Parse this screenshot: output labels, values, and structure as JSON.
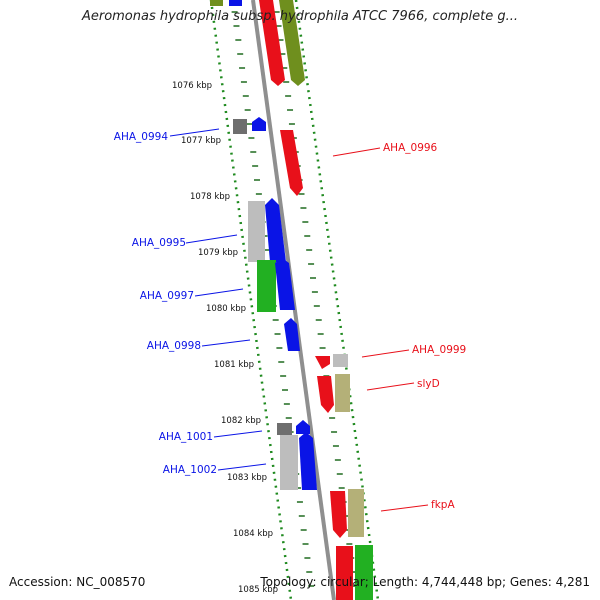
{
  "title": "Aeromonas hydrophila subsp. hydrophila ATCC 7966, complete g...",
  "footer": {
    "accession_label": "Accession:",
    "accession": "NC_008570",
    "stats": "Topology: circular; Length: 4,744,448 bp; Genes: 4,281"
  },
  "scale_labels": [
    "1076 kbp",
    "1077 kbp",
    "1078 kbp",
    "1079 kbp",
    "1080 kbp",
    "1081 kbp",
    "1082 kbp",
    "1083 kbp",
    "1084 kbp",
    "1085 kbp"
  ],
  "colors": {
    "red": "#e8101a",
    "blue": "#0a14e6",
    "green": "#22b022",
    "olive": "#6f8f1e",
    "khaki": "#b4b078",
    "gray": "#bdbdbd",
    "darkgray": "#6e6e6e",
    "dots": "#1f8a1f",
    "backbone": "#8f8f8f"
  },
  "gene_labels": [
    {
      "text": "AHA_0994",
      "side": "left",
      "color": "blue"
    },
    {
      "text": "AHA_0995",
      "side": "left",
      "color": "blue"
    },
    {
      "text": "AHA_0997",
      "side": "left",
      "color": "blue"
    },
    {
      "text": "AHA_0998",
      "side": "left",
      "color": "blue"
    },
    {
      "text": "AHA_1001",
      "side": "left",
      "color": "blue"
    },
    {
      "text": "AHA_1002",
      "side": "left",
      "color": "blue"
    },
    {
      "text": "AHA_0996",
      "side": "right",
      "color": "red"
    },
    {
      "text": "AHA_0999",
      "side": "right",
      "color": "red"
    },
    {
      "text": "slyD",
      "side": "right",
      "color": "red"
    },
    {
      "text": "fkpA",
      "side": "right",
      "color": "red"
    }
  ]
}
